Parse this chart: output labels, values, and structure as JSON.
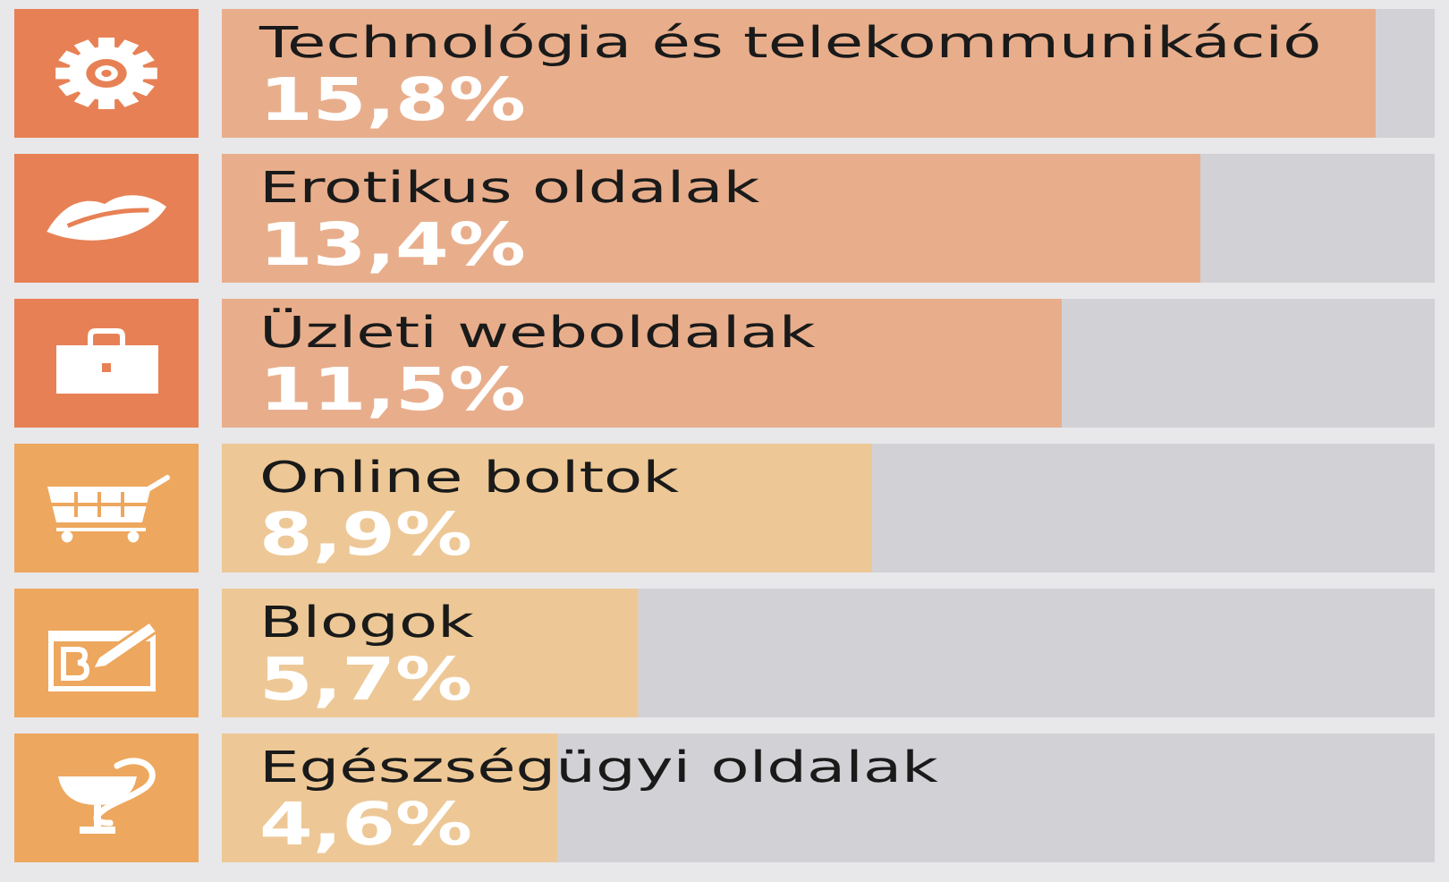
{
  "chart_data": {
    "type": "bar",
    "orientation": "horizontal",
    "categories": [
      "Technológia és telekommunikáció",
      "Erotikus oldalak",
      "Üzleti weboldalak",
      "Online boltok",
      "Blogok",
      "Egészségügyi oldalak"
    ],
    "values": [
      15.8,
      13.4,
      11.5,
      8.9,
      5.7,
      4.6
    ],
    "colors": [
      "#e8ae8c",
      "#e8ae8c",
      "#e8ae8c",
      "#edc896",
      "#edc896",
      "#edc896"
    ],
    "value_labels": [
      "15,8%",
      "13,4%",
      "11,5%",
      "8,9%",
      "5,7%",
      "4,6%"
    ]
  }
}
